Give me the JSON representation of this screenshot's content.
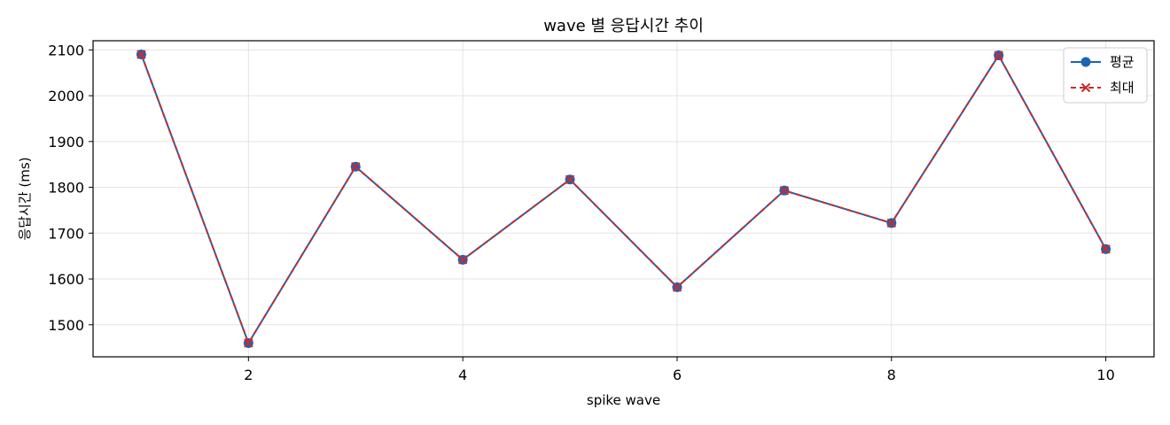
{
  "chart_data": {
    "type": "line",
    "title": "wave 별 응답시간 추이",
    "xlabel": "spike wave",
    "ylabel": "응답시간 (ms)",
    "x": [
      1,
      2,
      3,
      4,
      5,
      6,
      7,
      8,
      9,
      10
    ],
    "xlim": [
      0.55,
      10.45
    ],
    "ylim": [
      1430,
      2120
    ],
    "xticks": [
      2,
      4,
      6,
      8,
      10
    ],
    "yticks": [
      1500,
      1600,
      1700,
      1800,
      1900,
      2000,
      2100
    ],
    "grid": true,
    "legend_position": "top-right",
    "series": [
      {
        "name": "평균",
        "values": [
          2090,
          1460,
          1845,
          1642,
          1817,
          1582,
          1793,
          1722,
          2088,
          1665
        ],
        "color": "#1f63b5",
        "line_style": "solid",
        "marker": "circle"
      },
      {
        "name": "최대",
        "values": [
          2090,
          1460,
          1845,
          1642,
          1817,
          1582,
          1793,
          1722,
          2088,
          1665
        ],
        "color": "#c62d2d",
        "line_style": "dashed",
        "marker": "x"
      }
    ]
  }
}
